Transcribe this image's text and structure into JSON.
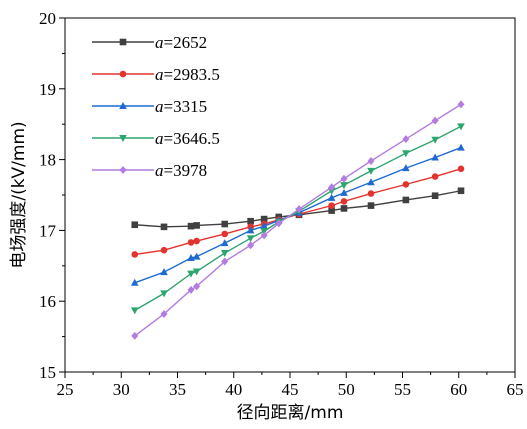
{
  "chart_data": {
    "type": "line",
    "title": "",
    "xlabel": "径向距离/mm",
    "ylabel": "电场强度/(kV/mm)",
    "xlim": [
      25,
      65
    ],
    "ylim": [
      15,
      20
    ],
    "xticks": [
      "25",
      "30",
      "35",
      "40",
      "45",
      "50",
      "55",
      "60",
      "65"
    ],
    "yticks": [
      "15",
      "16",
      "17",
      "18",
      "19",
      "20"
    ],
    "grid": false,
    "legend_position": "top-left",
    "series": [
      {
        "name": "2652",
        "name_prefix": "a=",
        "color": "#404040",
        "marker": "square",
        "x": [
          31.2,
          33.8,
          36.2,
          36.7,
          39.2,
          41.5,
          42.7,
          44.0,
          45.8,
          48.7,
          49.8,
          52.2,
          55.3,
          57.9,
          60.2
        ],
        "y": [
          17.08,
          17.05,
          17.06,
          17.07,
          17.09,
          17.13,
          17.16,
          17.19,
          17.22,
          17.28,
          17.31,
          17.35,
          17.43,
          17.49,
          17.56
        ]
      },
      {
        "name": "2983.5",
        "name_prefix": "a=",
        "color": "#e3332e",
        "marker": "circle",
        "x": [
          31.2,
          33.8,
          36.2,
          36.7,
          39.2,
          41.5,
          42.7,
          44.0,
          45.8,
          48.7,
          49.8,
          52.2,
          55.3,
          57.9,
          60.2
        ],
        "y": [
          16.66,
          16.72,
          16.83,
          16.85,
          16.95,
          17.05,
          17.09,
          17.15,
          17.23,
          17.35,
          17.41,
          17.52,
          17.65,
          17.76,
          17.87
        ]
      },
      {
        "name": "3315",
        "name_prefix": "a=",
        "color": "#1f6ad1",
        "marker": "triangle-up",
        "x": [
          31.2,
          33.8,
          36.2,
          36.7,
          39.2,
          41.5,
          42.7,
          44.0,
          45.8,
          48.7,
          49.8,
          52.2,
          55.3,
          57.9,
          60.2
        ],
        "y": [
          16.26,
          16.41,
          16.61,
          16.63,
          16.82,
          17.0,
          17.06,
          17.14,
          17.25,
          17.46,
          17.53,
          17.68,
          17.88,
          18.03,
          18.17
        ]
      },
      {
        "name": "3646.5",
        "name_prefix": "a=",
        "color": "#2ca66d",
        "marker": "triangle-down",
        "x": [
          31.2,
          33.8,
          36.2,
          36.7,
          39.2,
          41.5,
          42.7,
          44.0,
          45.8,
          48.7,
          49.8,
          52.2,
          55.3,
          57.9,
          60.2
        ],
        "y": [
          15.87,
          16.11,
          16.39,
          16.42,
          16.68,
          16.89,
          16.99,
          17.12,
          17.27,
          17.56,
          17.64,
          17.84,
          18.09,
          18.28,
          18.47
        ]
      },
      {
        "name": "3978",
        "name_prefix": "a=",
        "color": "#b27ce0",
        "marker": "diamond",
        "x": [
          31.2,
          33.8,
          36.2,
          36.7,
          39.2,
          41.5,
          42.7,
          44.0,
          45.8,
          48.7,
          49.8,
          52.2,
          55.3,
          57.9,
          60.2
        ],
        "y": [
          15.51,
          15.82,
          16.16,
          16.21,
          16.56,
          16.79,
          16.93,
          17.1,
          17.3,
          17.61,
          17.73,
          17.98,
          18.29,
          18.55,
          18.78
        ]
      }
    ]
  }
}
